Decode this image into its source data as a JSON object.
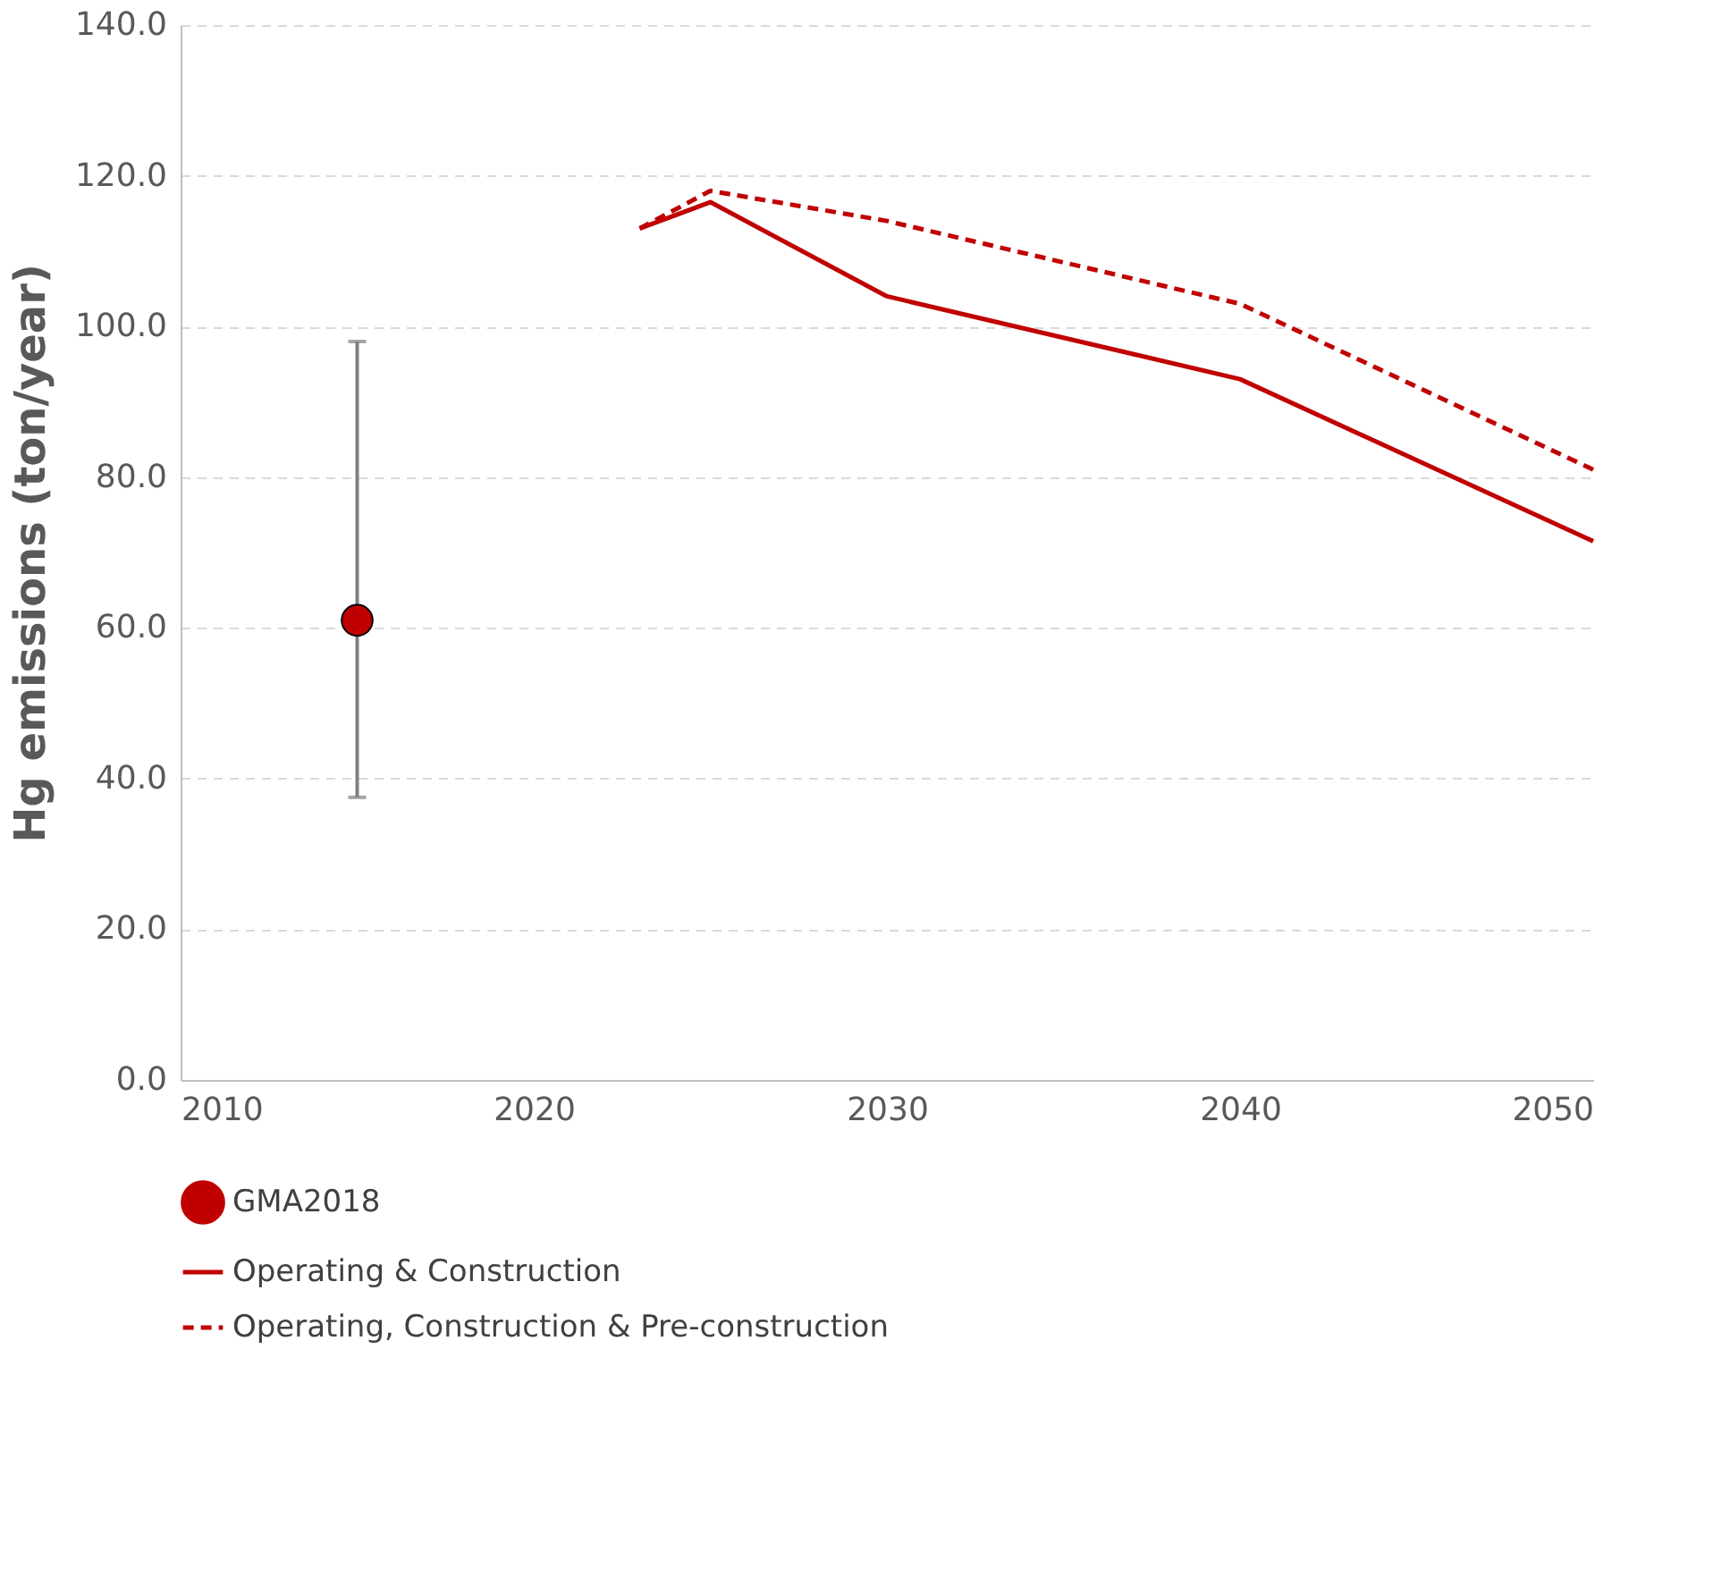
{
  "chart_data": {
    "type": "line",
    "ylabel": "Hg emissions (ton/year)",
    "xlim": [
      2010,
      2050
    ],
    "xticks": [
      2010,
      2020,
      2030,
      2040,
      2050
    ],
    "ylim": [
      0,
      140
    ],
    "yticks": [
      {
        "value": 0,
        "label": "0.0"
      },
      {
        "value": 20,
        "label": "20.0"
      },
      {
        "value": 40,
        "label": "40.0"
      },
      {
        "value": 60,
        "label": "60.0"
      },
      {
        "value": 80,
        "label": "80.0"
      },
      {
        "value": 100,
        "label": "100.0"
      },
      {
        "value": 120,
        "label": "120.0"
      },
      {
        "value": 140,
        "label": "140.0"
      }
    ],
    "grid": "y",
    "legend": "bottom",
    "series": [
      {
        "name": "GMA2018",
        "type": "scatter",
        "marker": "circle",
        "color": "#c00000",
        "x": [
          2015
        ],
        "values": [
          61
        ],
        "errors": [
          [
            37.5,
            98
          ]
        ]
      },
      {
        "name": "Operating & Construction",
        "line_style": "solid",
        "color": "#c00000",
        "x": [
          2023,
          2025,
          2030,
          2040,
          2050
        ],
        "values": [
          113,
          116.5,
          104,
          93,
          71.5
        ]
      },
      {
        "name": "Operating, Construction & Pre-construction",
        "line_style": "dashed",
        "color": "#c00000",
        "x": [
          2023,
          2025,
          2030,
          2040,
          2050
        ],
        "values": [
          113,
          118,
          114,
          103,
          81
        ]
      }
    ]
  }
}
